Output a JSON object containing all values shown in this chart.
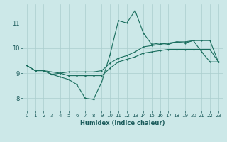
{
  "title": "",
  "xlabel": "Humidex (Indice chaleur)",
  "ylabel": "",
  "bg_color": "#cce8e8",
  "grid_color": "#aacece",
  "line_color": "#1a6e5e",
  "xlim": [
    -0.5,
    23.5
  ],
  "ylim": [
    7.5,
    11.75
  ],
  "yticks": [
    8,
    9,
    10,
    11
  ],
  "xticks": [
    0,
    1,
    2,
    3,
    4,
    5,
    6,
    7,
    8,
    9,
    10,
    11,
    12,
    13,
    14,
    15,
    16,
    17,
    18,
    19,
    20,
    21,
    22,
    23
  ],
  "line1_x": [
    0,
    1,
    2,
    3,
    4,
    5,
    6,
    7,
    8,
    9,
    10,
    11,
    12,
    13,
    14,
    15,
    16,
    17,
    18,
    19,
    20,
    21,
    22,
    23
  ],
  "line1_y": [
    9.3,
    9.1,
    9.1,
    8.95,
    8.85,
    8.75,
    8.55,
    8.0,
    7.95,
    8.65,
    9.75,
    11.1,
    11.0,
    11.5,
    10.6,
    10.15,
    10.2,
    10.15,
    10.25,
    10.2,
    10.3,
    9.85,
    9.45,
    9.45
  ],
  "line2_x": [
    0,
    1,
    2,
    3,
    4,
    5,
    6,
    7,
    8,
    9,
    10,
    11,
    12,
    13,
    14,
    15,
    16,
    17,
    18,
    19,
    20,
    21,
    22,
    23
  ],
  "line2_y": [
    9.3,
    9.1,
    9.1,
    9.05,
    9.0,
    9.05,
    9.05,
    9.05,
    9.05,
    9.1,
    9.4,
    9.6,
    9.7,
    9.85,
    10.05,
    10.1,
    10.15,
    10.2,
    10.25,
    10.25,
    10.3,
    10.3,
    10.3,
    9.45
  ],
  "line3_x": [
    0,
    1,
    2,
    3,
    4,
    5,
    6,
    7,
    8,
    9,
    10,
    11,
    12,
    13,
    14,
    15,
    16,
    17,
    18,
    19,
    20,
    21,
    22,
    23
  ],
  "line3_y": [
    9.3,
    9.1,
    9.1,
    8.95,
    9.0,
    8.9,
    8.9,
    8.9,
    8.9,
    8.9,
    9.2,
    9.45,
    9.55,
    9.65,
    9.8,
    9.85,
    9.9,
    9.95,
    9.95,
    9.95,
    9.95,
    9.95,
    9.95,
    9.45
  ],
  "tick_fontsize": 5,
  "xlabel_fontsize": 6,
  "marker_size": 2,
  "linewidth": 0.8
}
